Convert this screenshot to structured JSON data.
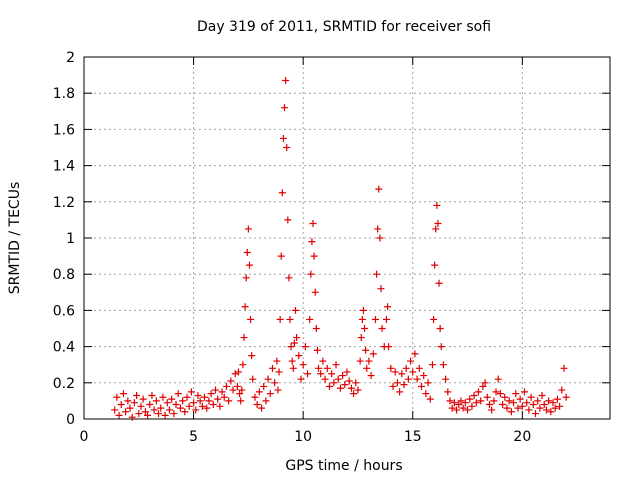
{
  "chart_data": {
    "type": "scatter",
    "title": "Day 319 of 2011, SRMTID for receiver sofi",
    "xlabel": "GPS time / hours",
    "ylabel": "SRMTID / TECUs",
    "xlim": [
      0,
      24
    ],
    "ylim": [
      0,
      2
    ],
    "x_ticks": [
      0,
      5,
      10,
      15,
      20
    ],
    "y_ticks": [
      0,
      0.2,
      0.4,
      0.6,
      0.8,
      1,
      1.2,
      1.4,
      1.6,
      1.8,
      2
    ],
    "grid": true,
    "marker": "+",
    "color": "#e00000",
    "series": [
      {
        "name": "SRMTID",
        "points": [
          [
            1.4,
            0.05
          ],
          [
            1.5,
            0.12
          ],
          [
            1.6,
            0.02
          ],
          [
            1.7,
            0.08
          ],
          [
            1.8,
            0.14
          ],
          [
            1.9,
            0.04
          ],
          [
            2.0,
            0.1
          ],
          [
            2.1,
            0.06
          ],
          [
            2.2,
            0.01
          ],
          [
            2.3,
            0.09
          ],
          [
            2.4,
            0.13
          ],
          [
            2.5,
            0.03
          ],
          [
            2.6,
            0.07
          ],
          [
            2.7,
            0.11
          ],
          [
            2.8,
            0.04
          ],
          [
            2.9,
            0.02
          ],
          [
            3.0,
            0.08
          ],
          [
            3.1,
            0.13
          ],
          [
            3.2,
            0.05
          ],
          [
            3.3,
            0.1
          ],
          [
            3.4,
            0.03
          ],
          [
            3.5,
            0.06
          ],
          [
            3.6,
            0.12
          ],
          [
            3.7,
            0.02
          ],
          [
            3.8,
            0.09
          ],
          [
            3.9,
            0.05
          ],
          [
            4.0,
            0.11
          ],
          [
            4.1,
            0.03
          ],
          [
            4.2,
            0.08
          ],
          [
            4.3,
            0.14
          ],
          [
            4.4,
            0.06
          ],
          [
            4.5,
            0.1
          ],
          [
            4.6,
            0.04
          ],
          [
            4.7,
            0.12
          ],
          [
            4.8,
            0.07
          ],
          [
            4.9,
            0.15
          ],
          [
            5.0,
            0.09
          ],
          [
            5.1,
            0.05
          ],
          [
            5.2,
            0.13
          ],
          [
            5.3,
            0.1
          ],
          [
            5.4,
            0.07
          ],
          [
            5.5,
            0.12
          ],
          [
            5.6,
            0.06
          ],
          [
            5.7,
            0.1
          ],
          [
            5.8,
            0.14
          ],
          [
            5.9,
            0.08
          ],
          [
            6.0,
            0.16
          ],
          [
            6.1,
            0.11
          ],
          [
            6.2,
            0.07
          ],
          [
            6.3,
            0.15
          ],
          [
            6.4,
            0.12
          ],
          [
            6.5,
            0.18
          ],
          [
            6.6,
            0.1
          ],
          [
            6.7,
            0.21
          ],
          [
            6.8,
            0.16
          ],
          [
            6.9,
            0.25
          ],
          [
            7.0,
            0.18
          ],
          [
            7.05,
            0.26
          ],
          [
            7.1,
            0.14
          ],
          [
            7.15,
            0.1
          ],
          [
            7.2,
            0.16
          ],
          [
            7.25,
            0.3
          ],
          [
            7.3,
            0.45
          ],
          [
            7.35,
            0.62
          ],
          [
            7.4,
            0.78
          ],
          [
            7.45,
            0.92
          ],
          [
            7.5,
            1.05
          ],
          [
            7.55,
            0.85
          ],
          [
            7.6,
            0.55
          ],
          [
            7.65,
            0.35
          ],
          [
            7.7,
            0.22
          ],
          [
            7.8,
            0.12
          ],
          [
            7.9,
            0.08
          ],
          [
            8.0,
            0.15
          ],
          [
            8.1,
            0.06
          ],
          [
            8.2,
            0.18
          ],
          [
            8.3,
            0.1
          ],
          [
            8.4,
            0.22
          ],
          [
            8.5,
            0.14
          ],
          [
            8.6,
            0.28
          ],
          [
            8.7,
            0.2
          ],
          [
            8.8,
            0.32
          ],
          [
            8.85,
            0.16
          ],
          [
            8.9,
            0.26
          ],
          [
            8.95,
            0.55
          ],
          [
            9.0,
            0.9
          ],
          [
            9.05,
            1.25
          ],
          [
            9.1,
            1.55
          ],
          [
            9.15,
            1.72
          ],
          [
            9.2,
            1.87
          ],
          [
            9.25,
            1.5
          ],
          [
            9.3,
            1.1
          ],
          [
            9.35,
            0.78
          ],
          [
            9.4,
            0.55
          ],
          [
            9.45,
            0.4
          ],
          [
            9.5,
            0.32
          ],
          [
            9.55,
            0.28
          ],
          [
            9.6,
            0.42
          ],
          [
            9.65,
            0.6
          ],
          [
            9.7,
            0.45
          ],
          [
            9.8,
            0.35
          ],
          [
            9.9,
            0.22
          ],
          [
            10.0,
            0.3
          ],
          [
            10.1,
            0.4
          ],
          [
            10.2,
            0.25
          ],
          [
            10.3,
            0.55
          ],
          [
            10.35,
            0.8
          ],
          [
            10.4,
            0.98
          ],
          [
            10.45,
            1.08
          ],
          [
            10.5,
            0.9
          ],
          [
            10.55,
            0.7
          ],
          [
            10.6,
            0.5
          ],
          [
            10.65,
            0.38
          ],
          [
            10.7,
            0.28
          ],
          [
            10.8,
            0.25
          ],
          [
            10.9,
            0.32
          ],
          [
            11.0,
            0.22
          ],
          [
            11.1,
            0.28
          ],
          [
            11.2,
            0.18
          ],
          [
            11.3,
            0.25
          ],
          [
            11.4,
            0.2
          ],
          [
            11.5,
            0.3
          ],
          [
            11.6,
            0.22
          ],
          [
            11.7,
            0.17
          ],
          [
            11.8,
            0.24
          ],
          [
            11.9,
            0.19
          ],
          [
            12.0,
            0.26
          ],
          [
            12.1,
            0.21
          ],
          [
            12.2,
            0.17
          ],
          [
            12.3,
            0.14
          ],
          [
            12.4,
            0.2
          ],
          [
            12.5,
            0.16
          ],
          [
            12.6,
            0.32
          ],
          [
            12.65,
            0.45
          ],
          [
            12.7,
            0.55
          ],
          [
            12.75,
            0.6
          ],
          [
            12.8,
            0.5
          ],
          [
            12.85,
            0.38
          ],
          [
            12.9,
            0.28
          ],
          [
            13.0,
            0.32
          ],
          [
            13.1,
            0.24
          ],
          [
            13.2,
            0.36
          ],
          [
            13.3,
            0.55
          ],
          [
            13.35,
            0.8
          ],
          [
            13.4,
            1.05
          ],
          [
            13.45,
            1.27
          ],
          [
            13.5,
            1.0
          ],
          [
            13.55,
            0.72
          ],
          [
            13.6,
            0.5
          ],
          [
            13.7,
            0.4
          ],
          [
            13.8,
            0.55
          ],
          [
            13.85,
            0.62
          ],
          [
            13.9,
            0.4
          ],
          [
            14.0,
            0.28
          ],
          [
            14.1,
            0.18
          ],
          [
            14.2,
            0.26
          ],
          [
            14.3,
            0.2
          ],
          [
            14.4,
            0.15
          ],
          [
            14.5,
            0.25
          ],
          [
            14.6,
            0.19
          ],
          [
            14.7,
            0.28
          ],
          [
            14.8,
            0.22
          ],
          [
            14.9,
            0.32
          ],
          [
            15.0,
            0.26
          ],
          [
            15.1,
            0.36
          ],
          [
            15.2,
            0.22
          ],
          [
            15.3,
            0.28
          ],
          [
            15.4,
            0.18
          ],
          [
            15.5,
            0.24
          ],
          [
            15.6,
            0.14
          ],
          [
            15.7,
            0.2
          ],
          [
            15.8,
            0.11
          ],
          [
            15.9,
            0.3
          ],
          [
            15.95,
            0.55
          ],
          [
            16.0,
            0.85
          ],
          [
            16.05,
            1.05
          ],
          [
            16.1,
            1.18
          ],
          [
            16.15,
            1.08
          ],
          [
            16.2,
            0.75
          ],
          [
            16.25,
            0.5
          ],
          [
            16.3,
            0.4
          ],
          [
            16.4,
            0.3
          ],
          [
            16.5,
            0.22
          ],
          [
            16.6,
            0.15
          ],
          [
            16.7,
            0.1
          ],
          [
            16.8,
            0.06
          ],
          [
            16.9,
            0.09
          ],
          [
            17.0,
            0.05
          ],
          [
            17.1,
            0.08
          ],
          [
            17.2,
            0.1
          ],
          [
            17.3,
            0.06
          ],
          [
            17.4,
            0.09
          ],
          [
            17.5,
            0.05
          ],
          [
            17.6,
            0.11
          ],
          [
            17.7,
            0.07
          ],
          [
            17.8,
            0.13
          ],
          [
            17.9,
            0.09
          ],
          [
            18.0,
            0.15
          ],
          [
            18.1,
            0.1
          ],
          [
            18.2,
            0.18
          ],
          [
            18.3,
            0.2
          ],
          [
            18.4,
            0.12
          ],
          [
            18.5,
            0.08
          ],
          [
            18.6,
            0.05
          ],
          [
            18.7,
            0.1
          ],
          [
            18.8,
            0.15
          ],
          [
            18.9,
            0.22
          ],
          [
            19.0,
            0.14
          ],
          [
            19.1,
            0.08
          ],
          [
            19.2,
            0.12
          ],
          [
            19.3,
            0.06
          ],
          [
            19.4,
            0.1
          ],
          [
            19.5,
            0.04
          ],
          [
            19.6,
            0.09
          ],
          [
            19.7,
            0.14
          ],
          [
            19.8,
            0.06
          ],
          [
            19.9,
            0.11
          ],
          [
            20.0,
            0.07
          ],
          [
            20.1,
            0.15
          ],
          [
            20.2,
            0.09
          ],
          [
            20.3,
            0.05
          ],
          [
            20.4,
            0.12
          ],
          [
            20.5,
            0.08
          ],
          [
            20.6,
            0.03
          ],
          [
            20.7,
            0.1
          ],
          [
            20.8,
            0.06
          ],
          [
            20.9,
            0.13
          ],
          [
            21.0,
            0.08
          ],
          [
            21.1,
            0.05
          ],
          [
            21.2,
            0.1
          ],
          [
            21.3,
            0.04
          ],
          [
            21.4,
            0.09
          ],
          [
            21.5,
            0.06
          ],
          [
            21.6,
            0.11
          ],
          [
            21.7,
            0.07
          ],
          [
            21.8,
            0.16
          ],
          [
            21.9,
            0.28
          ],
          [
            22.0,
            0.12
          ]
        ]
      }
    ]
  }
}
